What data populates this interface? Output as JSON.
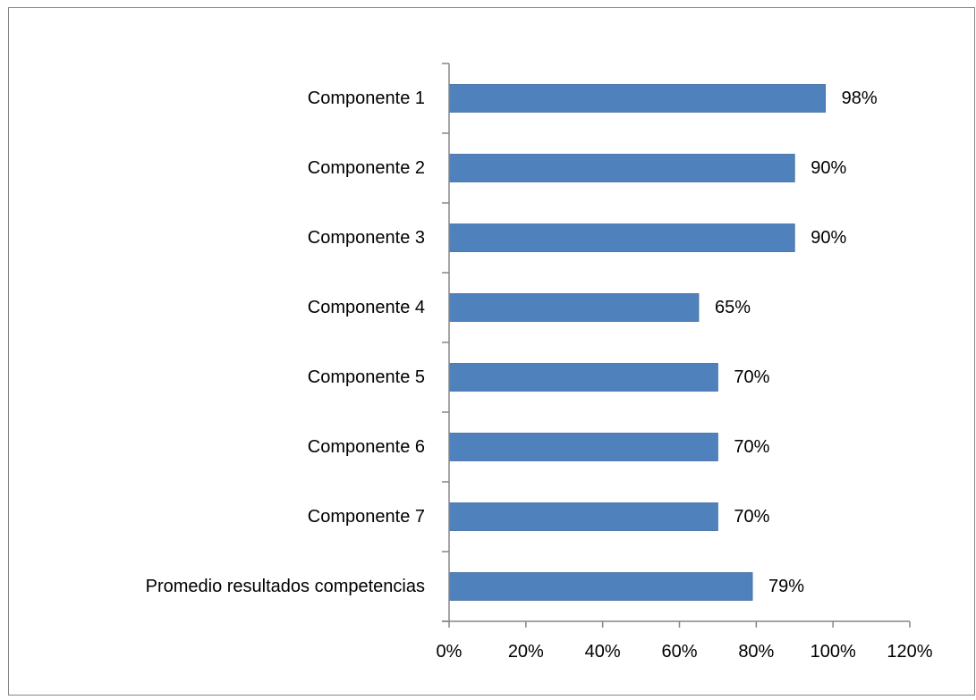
{
  "chart_data": {
    "type": "bar",
    "orientation": "horizontal",
    "title": "",
    "xlabel": "",
    "ylabel": "",
    "categories": [
      "Componente 1",
      "Componente 2",
      "Componente 3",
      "Componente 4",
      "Componente 5",
      "Componente 6",
      "Componente 7",
      "Promedio resultados competencias"
    ],
    "values": [
      98,
      90,
      90,
      65,
      70,
      70,
      70,
      79
    ],
    "data_labels": [
      "98%",
      "90%",
      "90%",
      "65%",
      "70%",
      "70%",
      "70%",
      "79%"
    ],
    "xlim": [
      0,
      120
    ],
    "xticks": [
      0,
      20,
      40,
      60,
      80,
      100,
      120
    ],
    "xtick_labels": [
      "0%",
      "20%",
      "40%",
      "60%",
      "80%",
      "100%",
      "120%"
    ],
    "grid": false,
    "legend": "none",
    "colors": {
      "bar": "#4F81BD",
      "axis": "#868686",
      "border": "#868686",
      "text": "#000000"
    }
  }
}
